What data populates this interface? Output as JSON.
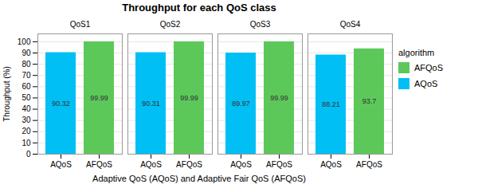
{
  "chart_data": {
    "type": "bar",
    "title": "Throughput for each QoS class",
    "xlabel": "Adaptive QoS (AQoS) and Adaptive Fair QoS (AFQoS)",
    "ylabel": "Throughput (%)",
    "categories": [
      "QoS1",
      "QoS2",
      "QoS3",
      "QoS4"
    ],
    "series": [
      {
        "name": "AQoS",
        "color": "#00BFF4",
        "values": [
          90.32,
          90.31,
          89.97,
          88.21
        ]
      },
      {
        "name": "AFQoS",
        "color": "#5DC85A",
        "values": [
          99.99,
          99.99,
          99.99,
          93.7
        ]
      }
    ],
    "ylim": [
      0,
      107
    ],
    "yticks": [
      0,
      10,
      20,
      30,
      40,
      50,
      60,
      70,
      80,
      90,
      100
    ],
    "grid": true,
    "data_labels": true,
    "legend": "right",
    "legend_title": "algorithm"
  }
}
